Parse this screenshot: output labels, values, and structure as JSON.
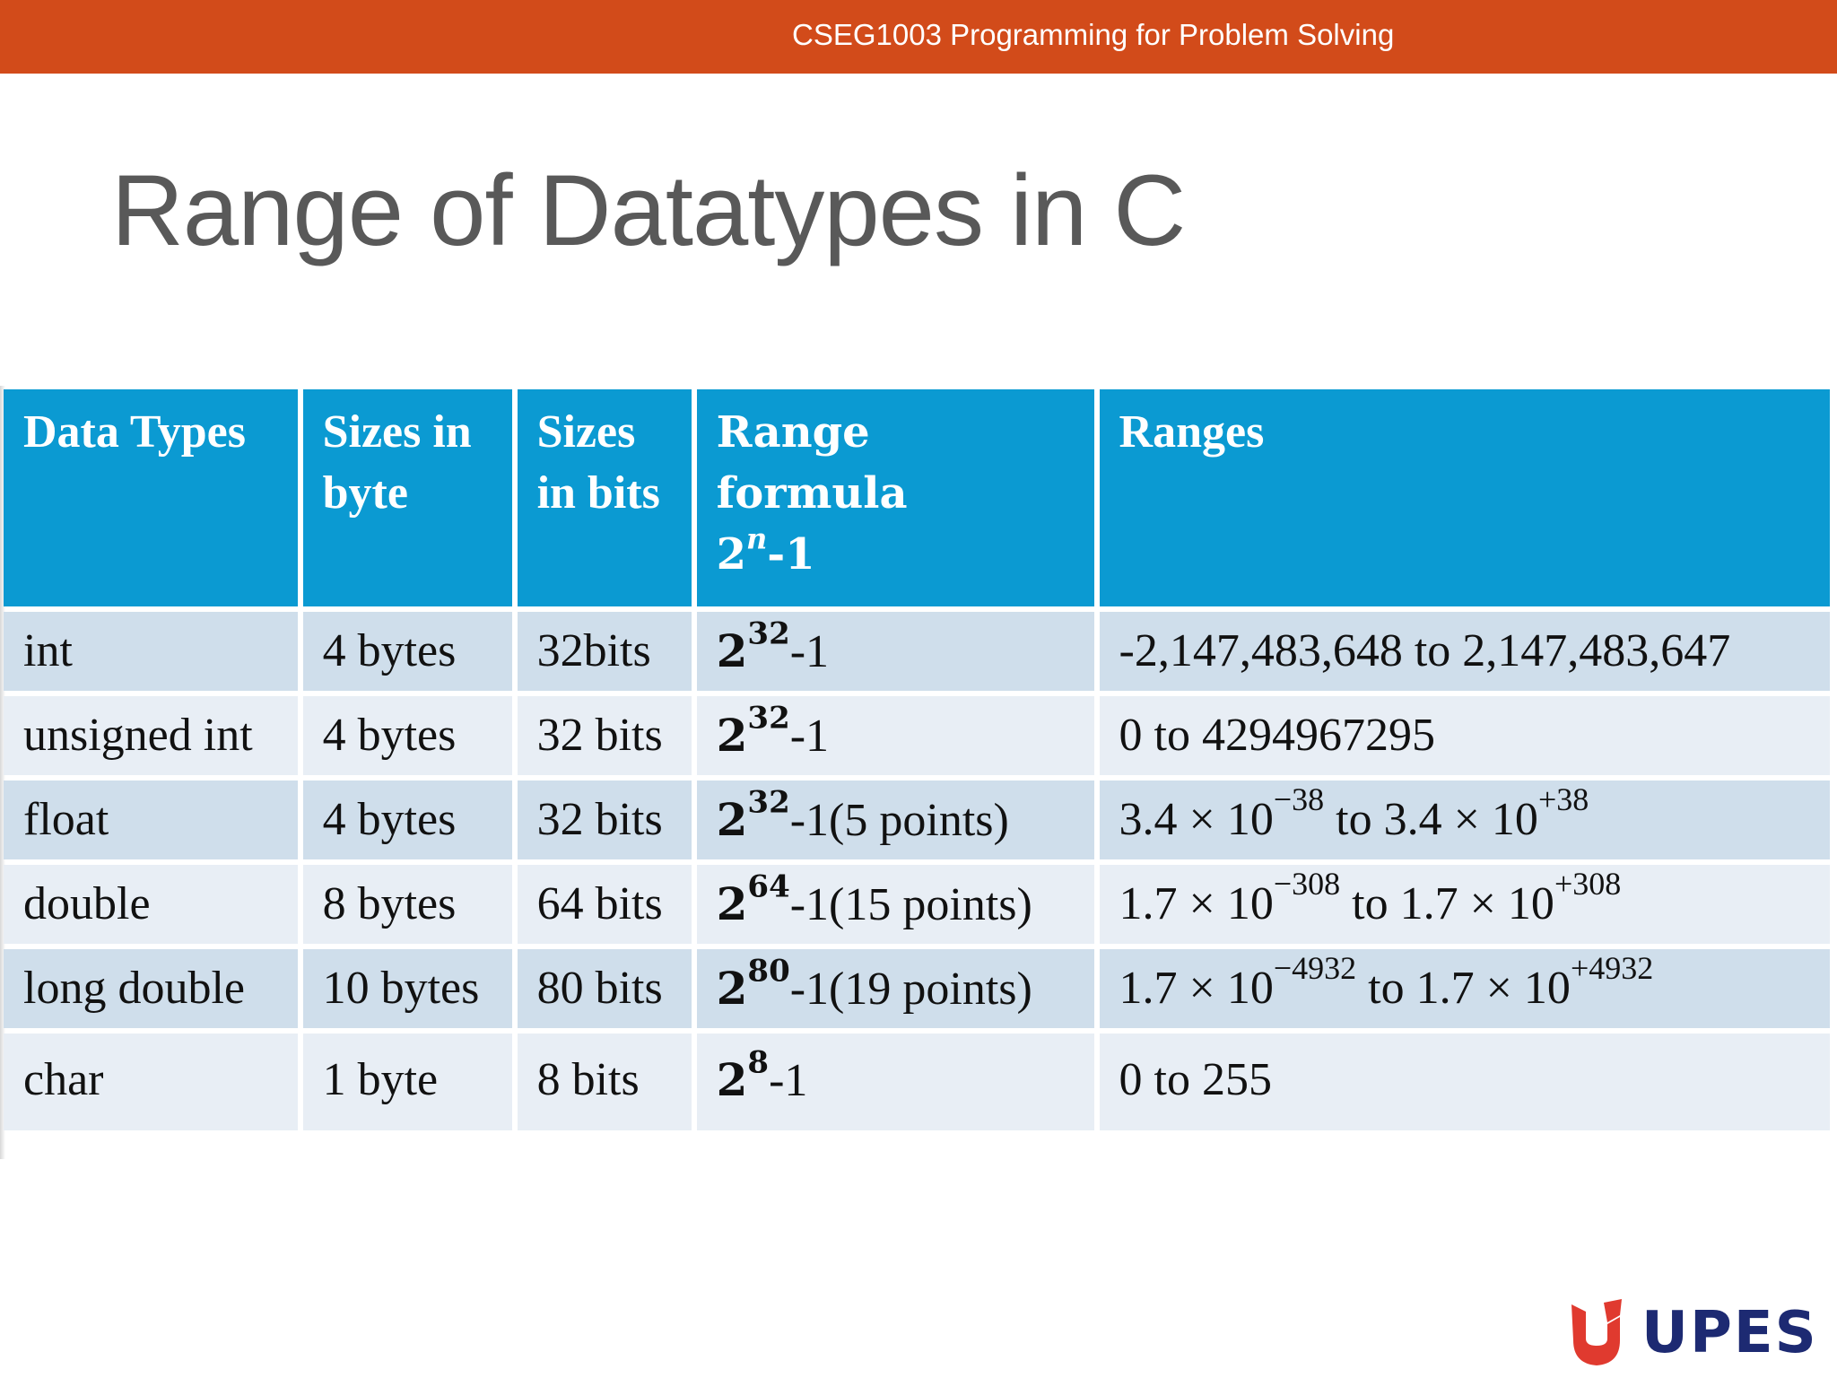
{
  "header": {
    "course": "CSEG1003 Programming for Problem Solving"
  },
  "slide": {
    "title": "Range of Datatypes in C"
  },
  "table": {
    "headers": {
      "type": "Data Types",
      "bytes_line1": "Sizes in",
      "bytes_line2": "byte",
      "bits_line1": "Sizes",
      "bits_line2": "in bits",
      "formula_line1": "Range",
      "formula_line2": "formula",
      "formula_base": "2",
      "formula_exp": "n",
      "formula_tail": "-1",
      "ranges": "Ranges"
    },
    "rows": [
      {
        "type": "int",
        "bytes": "4 bytes",
        "bits": "32bits",
        "base": "2",
        "exp": "32",
        "tail": "-1",
        "r_a": "-2,147,483,648 to 2,147,483,647",
        "r_ae": "",
        "r_b": "",
        "r_be": ""
      },
      {
        "type": "unsigned int",
        "bytes": "4 bytes",
        "bits": "32 bits",
        "base": "2",
        "exp": "32",
        "tail": "-1",
        "r_a": "0 to  4294967295",
        "r_ae": "",
        "r_b": "",
        "r_be": ""
      },
      {
        "type": "float",
        "bytes": "4 bytes",
        "bits": "32 bits",
        "base": "2",
        "exp": "32",
        "tail": "-1(5 points)",
        "r_a": "3.4 × 10",
        "r_ae": "−38",
        "r_b": " to 3.4 × 10",
        "r_be": "+38"
      },
      {
        "type": "double",
        "bytes": "8 bytes",
        "bits": "64 bits",
        "base": "2",
        "exp": "64",
        "tail": "-1(15 points)",
        "r_a": "1.7 × 10",
        "r_ae": "−308",
        "r_b": " to 1.7 × 10",
        "r_be": "+308"
      },
      {
        "type": "long double",
        "bytes": "10 bytes",
        "bits": "80 bits",
        "base": "2",
        "exp": "80",
        "tail": "-1(19 points)",
        "r_a": "1.7 × 10",
        "r_ae": "−4932",
        "r_b": " to 1.7 × 10",
        "r_be": "+4932"
      },
      {
        "type": "char",
        "bytes": "1 byte",
        "bits": "8 bits",
        "base": "2",
        "exp": "8",
        "tail": "-1",
        "r_a": "0 to 255",
        "r_ae": "",
        "r_b": "",
        "r_be": ""
      }
    ]
  },
  "logo": {
    "text": "UPES",
    "colors": {
      "navy": "#1d2a72",
      "red": "#e03a2f"
    }
  },
  "colors": {
    "header_bar": "#d24b1a",
    "table_header": "#0b9ad2",
    "row_odd": "#cfdeeb",
    "row_even": "#e8eef5"
  }
}
